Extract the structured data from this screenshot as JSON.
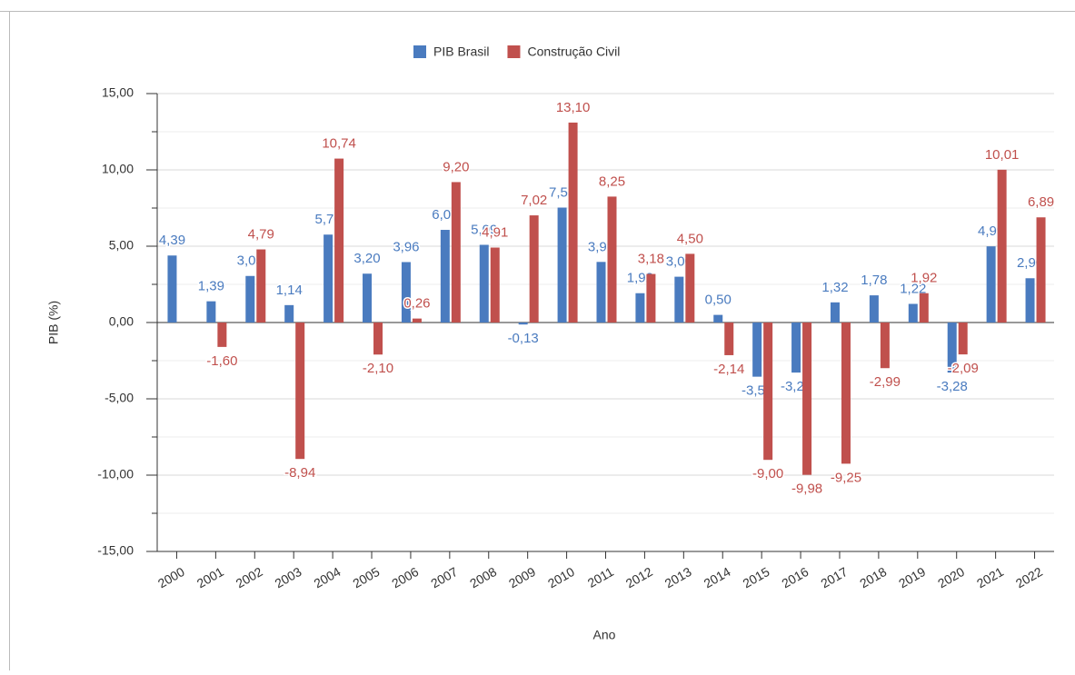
{
  "chart_data": {
    "type": "bar",
    "x_label": "Ano",
    "y_label": "PIB (%)",
    "categories": [
      "2000",
      "2001",
      "2002",
      "2003",
      "2004",
      "2005",
      "2006",
      "2007",
      "2008",
      "2009",
      "2010",
      "2011",
      "2012",
      "2013",
      "2014",
      "2015",
      "2016",
      "2017",
      "2018",
      "2019",
      "2020",
      "2021",
      "2022"
    ],
    "series": [
      {
        "name": "PIB Brasil",
        "color": "#4a7bbf",
        "values": [
          4.39,
          1.39,
          3.05,
          1.14,
          5.76,
          3.2,
          3.96,
          6.07,
          5.09,
          -0.13,
          7.53,
          3.97,
          1.92,
          3.0,
          0.5,
          -3.55,
          -3.28,
          1.32,
          1.78,
          1.22,
          -3.28,
          4.99,
          2.9
        ],
        "value_labels": [
          "4,39",
          "1,39",
          "3,05",
          "1,14",
          "5,76",
          "3,20",
          "3,96",
          "6,07",
          "5,09",
          "-0,13",
          "7,53",
          "3,97",
          "1,92",
          "3,00",
          "0,50",
          "-3,55",
          "-3,28",
          "1,32",
          "1,78",
          "1,22",
          "-3,28",
          "4,99",
          "2,90"
        ]
      },
      {
        "name": "Construção Civil",
        "color": "#c0504d",
        "values": [
          null,
          -1.6,
          4.79,
          -8.94,
          10.74,
          -2.1,
          0.26,
          9.2,
          4.91,
          7.02,
          13.1,
          8.25,
          3.18,
          4.5,
          -2.14,
          -9.0,
          -9.98,
          -9.25,
          -2.99,
          1.92,
          -2.09,
          10.01,
          6.89
        ],
        "value_labels": [
          null,
          "-1,60",
          "4,79",
          "-8,94",
          "10,74",
          "-2,10",
          "0,26",
          "9,20",
          "4,91",
          "7,02",
          "13,10",
          "8,25",
          "3,18",
          "4,50",
          "-2,14",
          "-9,00",
          "-9,98",
          "-9,25",
          "-2,99",
          "1,92",
          "-2,09",
          "10,01",
          "6,89"
        ]
      }
    ],
    "ylim": [
      -15,
      15
    ],
    "yticks": [
      {
        "value": -15,
        "label": "-15,00"
      },
      {
        "value": -10,
        "label": "-10,00"
      },
      {
        "value": -5,
        "label": "-5,00"
      },
      {
        "value": 0,
        "label": "0,00"
      },
      {
        "value": 5,
        "label": "5,00"
      },
      {
        "value": 10,
        "label": "10,00"
      },
      {
        "value": 15,
        "label": "15,00"
      }
    ],
    "minor_yticks": [
      -12.5,
      -7.5,
      -2.5,
      2.5,
      7.5,
      12.5
    ],
    "grid": true,
    "legend": "top"
  }
}
